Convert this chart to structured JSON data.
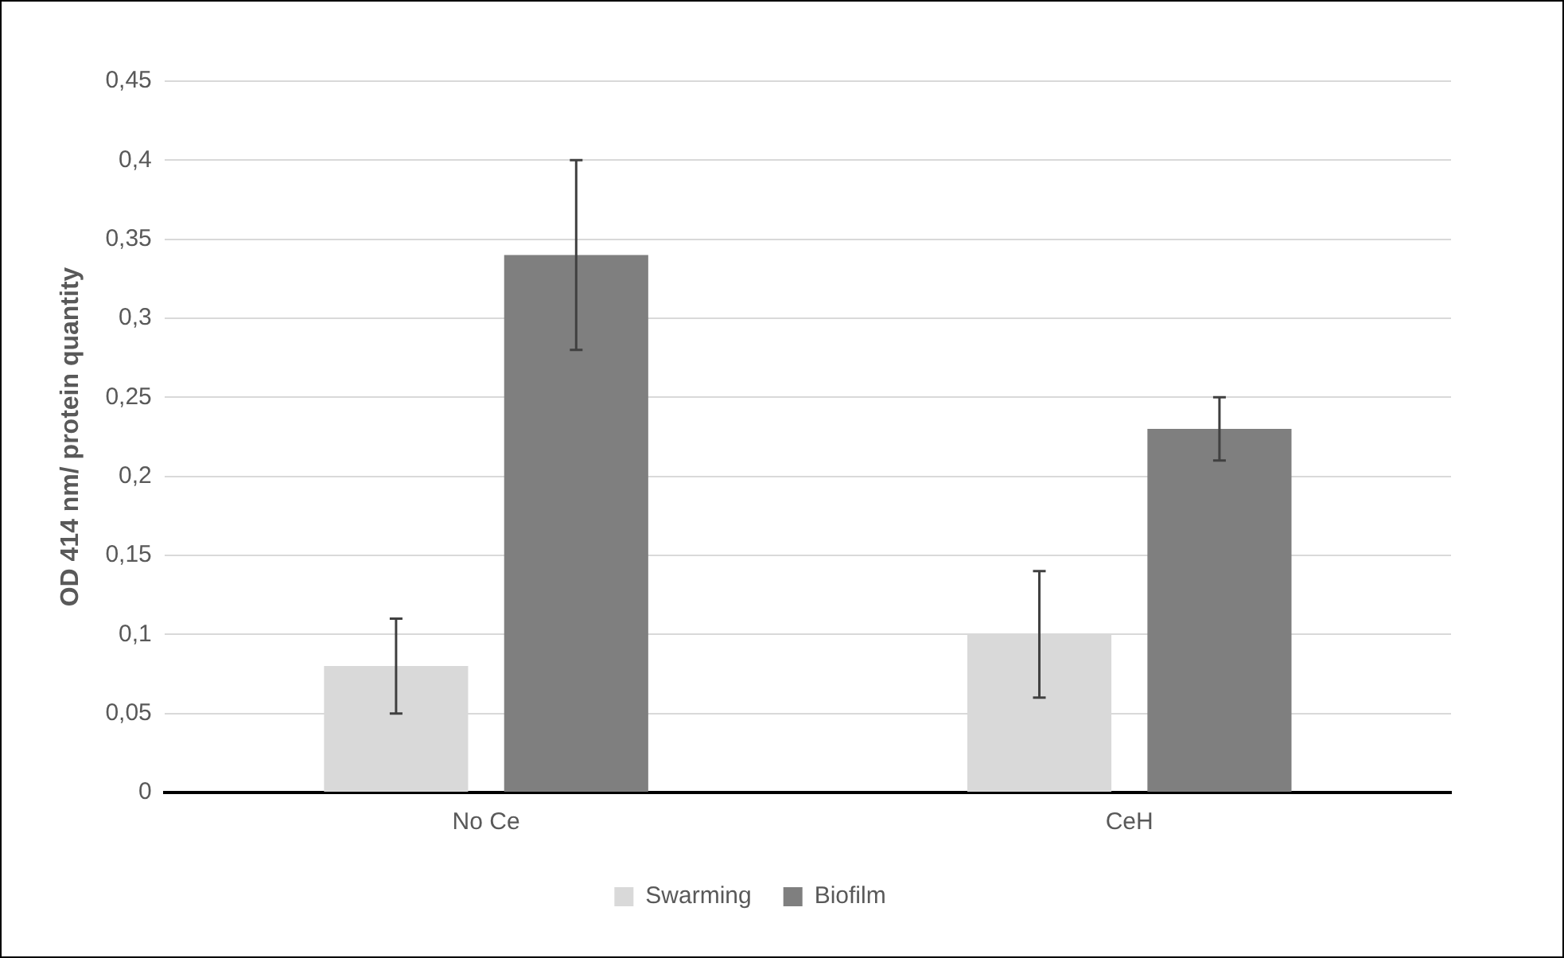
{
  "chart_data": {
    "type": "bar",
    "ylabel": "OD 414 nm/ protein quantity",
    "categories": [
      "No Ce",
      "CeH"
    ],
    "series": [
      {
        "name": "Swarming",
        "color": "#d9d9d9",
        "values": [
          0.08,
          0.1
        ],
        "errors": [
          0.03,
          0.04
        ]
      },
      {
        "name": "Biofilm",
        "color": "#7f7f7f",
        "values": [
          0.34,
          0.23
        ],
        "errors": [
          0.06,
          0.02
        ]
      }
    ],
    "ylim": [
      0,
      0.45
    ],
    "yticks": [
      0,
      {
        "value": 0.05,
        "label": "0,05"
      },
      {
        "value": 0.1,
        "label": "0,1"
      },
      {
        "value": 0.15,
        "label": "0,15"
      },
      {
        "value": 0.2,
        "label": "0,2"
      },
      {
        "value": 0.25,
        "label": "0,25"
      },
      {
        "value": 0.3,
        "label": "0,3"
      },
      {
        "value": 0.35,
        "label": "0,35"
      },
      {
        "value": 0.4,
        "label": "0,4"
      },
      {
        "value": 0.45,
        "label": "0,45"
      }
    ],
    "grid": "y",
    "legend": "bottom"
  }
}
